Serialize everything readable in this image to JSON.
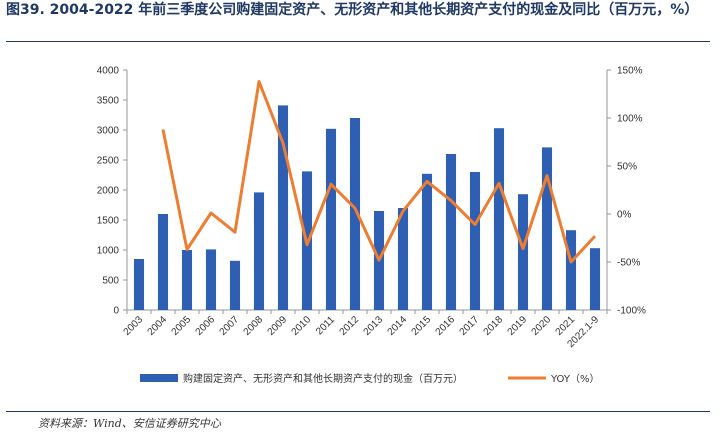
{
  "header": {
    "title": "图39. 2004-2022 年前三季度公司购建固定资产、无形资产和其他长期资产支付的现金及同比（百万元，%）"
  },
  "footer": {
    "source": "资料来源：Wind、安信证券研究中心"
  },
  "chart_data": {
    "type": "bar",
    "categories": [
      "2003",
      "2004",
      "2005",
      "2006",
      "2007",
      "2008",
      "2009",
      "2010",
      "2011",
      "2012",
      "2013",
      "2014",
      "2015",
      "2016",
      "2017",
      "2018",
      "2019",
      "2020",
      "2021",
      "2022.1-9"
    ],
    "series": [
      {
        "name": "购建固定资产、无形资产和其他长期资产支付的现金（百万元）",
        "type": "bar",
        "axis": "left",
        "color": "#2f5fb3",
        "values": [
          850,
          1600,
          1000,
          1010,
          820,
          1960,
          3410,
          2310,
          3020,
          3200,
          1650,
          1700,
          2270,
          2600,
          2300,
          3030,
          1930,
          2710,
          1330,
          1030
        ]
      },
      {
        "name": "YOY（%）",
        "type": "line",
        "axis": "right",
        "color": "#ed7d31",
        "values": [
          null,
          88,
          -37,
          1,
          -19,
          138,
          74,
          -32,
          31,
          6,
          -48,
          3,
          34,
          14,
          -11,
          32,
          -36,
          40,
          -50,
          -23
        ]
      }
    ],
    "left_axis": {
      "ylim": [
        0,
        4000
      ],
      "ticks": [
        0,
        500,
        1000,
        1500,
        2000,
        2500,
        3000,
        3500,
        4000
      ]
    },
    "right_axis": {
      "ylim": [
        -100,
        150
      ],
      "ticks": [
        "-100%",
        "-50%",
        "0%",
        "50%",
        "100%",
        "150%"
      ],
      "tick_values": [
        -100,
        -50,
        0,
        50,
        100,
        150
      ]
    },
    "grid": false,
    "legend": "bottom"
  }
}
